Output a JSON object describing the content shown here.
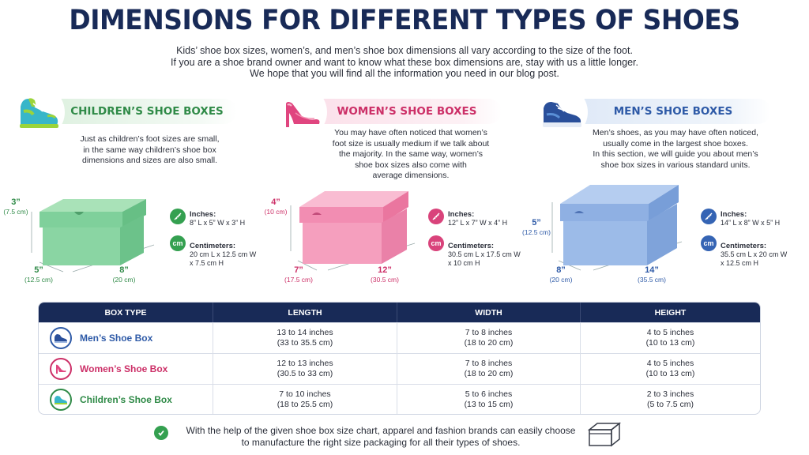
{
  "title": "DIMENSIONS FOR DIFFERENT TYPES OF SHOES",
  "intro": [
    "Kids’ shoe box sizes, women’s, and men’s shoe box dimensions all vary according to the size of the foot.",
    "If you are a shoe brand owner and want to know what these box dimensions are, stay with us a little longer.",
    "We hope that you will find all the information you need in our blog post."
  ],
  "colors": {
    "navy": "#182a57",
    "green": "#2f8a47",
    "pink": "#cc2f67",
    "blue": "#2e5aa7"
  },
  "sections": {
    "children": {
      "heading": "CHILDREN’S SHOE BOXES",
      "desc": [
        "Just as children’s foot sizes are small,",
        "in the same way children’s shoe box",
        "dimensions and sizes are also small."
      ],
      "height": "3”",
      "height_cm": "(7.5 cm)",
      "width": "5”",
      "width_cm": "(12.5 cm)",
      "length": "8”",
      "length_cm": "(20 cm)",
      "inches_label": "Inches:",
      "inches_value": "8” L x 5” W x 3” H",
      "cm_label": "Centimeters:",
      "cm_value_1": "20 cm L x 12.5 cm W",
      "cm_value_2": "x 7.5 cm H"
    },
    "women": {
      "heading": "WOMEN’S SHOE BOXES",
      "desc": [
        "You may have often noticed that women’s",
        "foot size is usually medium if we talk about",
        "the majority. In the same way, women’s",
        "shoe box sizes also come with",
        "average dimensions."
      ],
      "height": "4”",
      "height_cm": "(10 cm)",
      "width": "7”",
      "width_cm": "(17.5 cm)",
      "length": "12”",
      "length_cm": "(30.5 cm)",
      "inches_label": "Inches:",
      "inches_value": "12” L x 7” W x 4” H",
      "cm_label": "Centimeters:",
      "cm_value_1": "30.5 cm L x 17.5 cm W",
      "cm_value_2": "x 10 cm H"
    },
    "men": {
      "heading": "MEN’S SHOE BOXES",
      "desc": [
        "Men’s shoes, as you may have often noticed,",
        "usually come in the largest shoe boxes.",
        "In this section, we will guide you about men’s",
        "shoe box sizes in various standard units."
      ],
      "height": "5”",
      "height_cm": "(12.5 cm)",
      "width": "8”",
      "width_cm": "(20 cm)",
      "length": "14”",
      "length_cm": "(35.5 cm)",
      "inches_label": "Inches:",
      "inches_value": "14” L x 8” W x 5” H",
      "cm_label": "Centimeters:",
      "cm_value_1": "35.5 cm L x 20 cm W",
      "cm_value_2": "x 12.5 cm H"
    }
  },
  "icon_labels": {
    "cm": "cm"
  },
  "table": {
    "headers": [
      "BOX TYPE",
      "LENGTH",
      "WIDTH",
      "HEIGHT"
    ],
    "rows": [
      {
        "type": "Men’s Shoe Box",
        "length_in": "13 to 14 inches",
        "length_cm": "(33 to 35.5 cm)",
        "width_in": "7 to 8 inches",
        "width_cm": "(18 to 20 cm)",
        "height_in": "4 to 5 inches",
        "height_cm": "(10 to 13 cm)",
        "icon": "men-shoe-icon"
      },
      {
        "type": "Women’s Shoe Box",
        "length_in": "12 to 13 inches",
        "length_cm": "(30.5 to 33 cm)",
        "width_in": "7 to 8 inches",
        "width_cm": "(18 to 20 cm)",
        "height_in": "4 to 5 inches",
        "height_cm": "(10 to 13 cm)",
        "icon": "high-heel-icon"
      },
      {
        "type": "Children’s Shoe Box",
        "length_in": "7 to 10 inches",
        "length_cm": "(18 to 25.5 cm)",
        "width_in": "5 to 6 inches",
        "width_cm": "(13 to 15 cm)",
        "height_in": "2 to 3 inches",
        "height_cm": "(5 to 7.5 cm)",
        "icon": "kids-shoe-icon"
      }
    ]
  },
  "footer": [
    "With the help of the given shoe box size chart, apparel and fashion brands can easily choose",
    "to manufacture the right size packaging for all their types of shoes."
  ]
}
